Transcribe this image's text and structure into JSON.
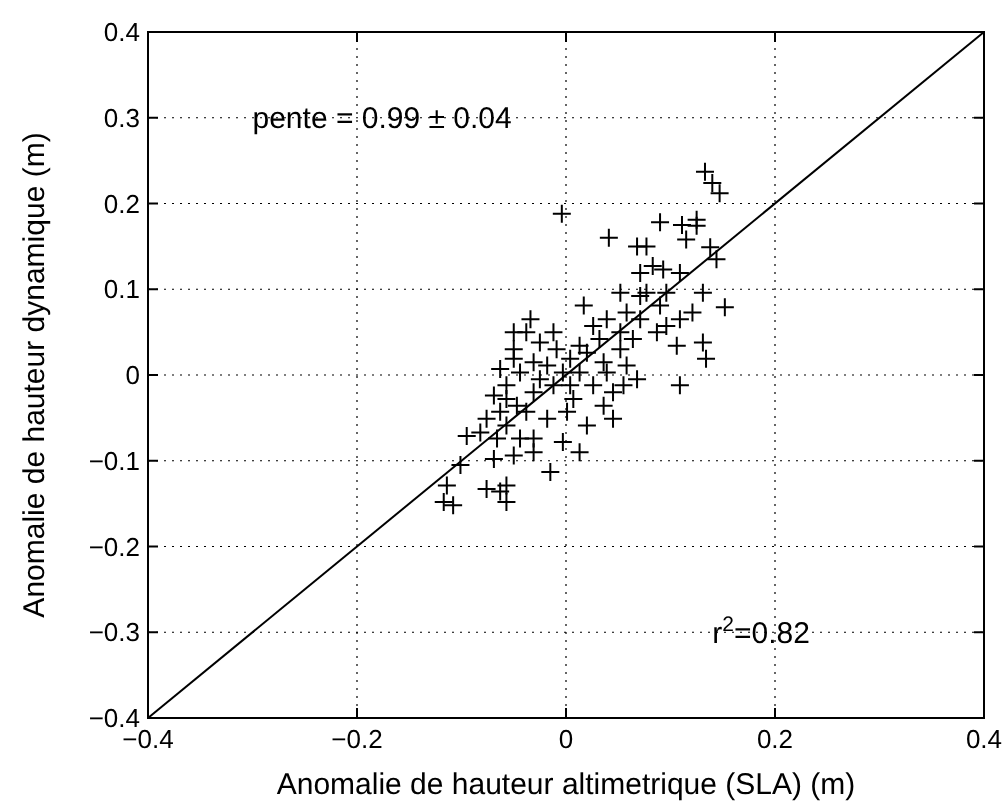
{
  "chart_data": {
    "type": "scatter",
    "xlabel": "Anomalie de hauteur altimetrique (SLA) (m)",
    "ylabel": "Anomalie de hauteur dynamique (m)",
    "xlim": [
      -0.4,
      0.4
    ],
    "ylim": [
      -0.4,
      0.4
    ],
    "xticks": [
      {
        "value": -0.4,
        "label": "−0.4"
      },
      {
        "value": -0.2,
        "label": "−0.2"
      },
      0,
      0.2,
      0.4
    ],
    "yticks": [
      {
        "value": -0.4,
        "label": "−0.4"
      },
      {
        "value": -0.3,
        "label": "−0.3"
      },
      {
        "value": -0.2,
        "label": "−0.2"
      },
      {
        "value": -0.1,
        "label": "−0.1"
      },
      0,
      0.1,
      0.2,
      0.3,
      0.4
    ],
    "grid": true,
    "marker": "cross",
    "annotations": [
      "pente = 0.99 ± 0.04",
      "r$^{2}$=0.82"
    ],
    "series": [
      {
        "color": "#000000",
        "x": [
          0.133,
          0.147,
          0.14,
          -0.004,
          0.041,
          0.09,
          0.111,
          0.125,
          0.068,
          0.077,
          0.115,
          0.144,
          0.138,
          0.093,
          0.071,
          0.109,
          0.052,
          0.131,
          0.152,
          0.09,
          0.096,
          0.071,
          0.109,
          0.131,
          0.134,
          0.109,
          0.106,
          0.017,
          0.026,
          0.039,
          0.058,
          0.071,
          0.013,
          0.032,
          0.052,
          0.064,
          -0.009,
          0.004,
          0.02,
          0.036,
          0.052,
          0.068,
          0.055,
          0.039,
          0.026,
          0.007,
          0.036,
          0.045,
          0.02,
          0.001,
          -0.012,
          -0.034,
          -0.038,
          -0.05,
          -0.031,
          -0.044,
          -0.018,
          -0.057,
          -0.031,
          -0.057,
          -0.069,
          -0.047,
          -0.063,
          -0.038,
          -0.018,
          -0.076,
          -0.057,
          -0.082,
          -0.066,
          -0.095,
          -0.044,
          -0.031,
          -0.003,
          0.013,
          -0.069,
          -0.05,
          -0.031,
          -0.015,
          -0.101,
          -0.114,
          -0.117,
          -0.108,
          -0.076,
          -0.057,
          -0.057,
          -0.063,
          -0.05,
          -0.025,
          -0.012,
          -0.05,
          -0.063,
          -0.025,
          -0.003,
          0.004,
          0.013,
          0.058,
          0.045,
          0.083,
          0.096,
          0.121,
          0.087,
          0.077,
          0.125
        ],
        "values": [
          0.237,
          0.212,
          0.224,
          0.188,
          0.16,
          0.178,
          0.175,
          0.174,
          0.15,
          0.15,
          0.158,
          0.135,
          0.149,
          0.123,
          0.119,
          0.119,
          0.096,
          0.096,
          0.079,
          0.081,
          0.057,
          0.065,
          0.065,
          0.038,
          0.019,
          -0.012,
          0.034,
          0.081,
          0.057,
          0.065,
          0.073,
          0.092,
          0.034,
          0.042,
          0.05,
          0.042,
          0.03,
          0.019,
          0.026,
          0.015,
          0.03,
          -0.005,
          -0.012,
          0.003,
          -0.012,
          -0.028,
          -0.036,
          -0.051,
          -0.059,
          -0.043,
          -0.012,
          0.065,
          0.05,
          0.03,
          0.015,
          0.003,
          0.011,
          -0.012,
          -0.02,
          -0.028,
          -0.024,
          -0.036,
          -0.043,
          -0.043,
          -0.051,
          -0.051,
          -0.059,
          -0.067,
          -0.074,
          -0.071,
          -0.074,
          -0.074,
          -0.078,
          -0.09,
          -0.098,
          -0.094,
          -0.09,
          -0.113,
          -0.105,
          -0.129,
          -0.148,
          -0.152,
          -0.133,
          -0.129,
          -0.148,
          -0.136,
          0.05,
          0.038,
          0.05,
          0.019,
          0.007,
          -0.005,
          0.003,
          -0.012,
          0.003,
          0.011,
          -0.02,
          0.127,
          0.096,
          0.073,
          0.05,
          0.096,
          0.181
        ]
      },
      {
        "type": "line",
        "color": "#000000",
        "line_style": "solid",
        "marker": "none",
        "x": [
          -0.4,
          0.4
        ],
        "values": [
          -0.4,
          0.4
        ]
      }
    ]
  }
}
